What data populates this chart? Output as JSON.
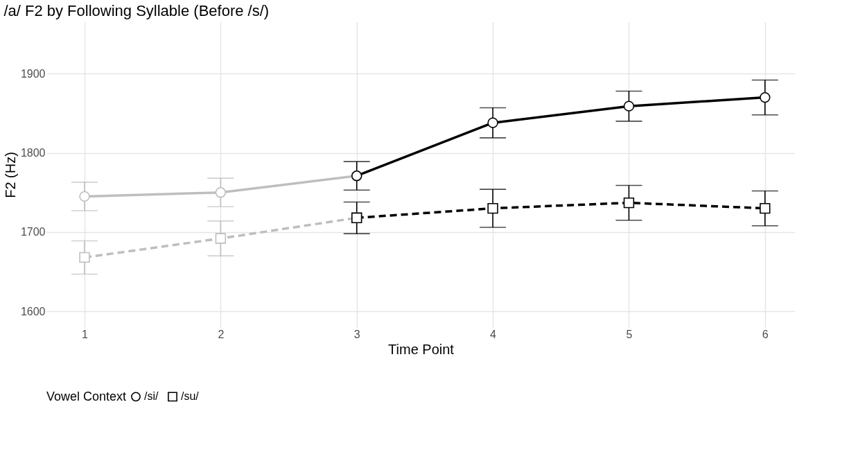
{
  "chart_data": {
    "type": "line",
    "title": "/a/ F2 by Following Syllable (Before /s/)",
    "xlabel": "Time Point",
    "ylabel": "F2 (Hz)",
    "legend_title": "Vowel Context",
    "series": [
      {
        "color": "#bebebe",
        "marker": "circle",
        "line_style": "solid",
        "x": [
          1,
          2,
          3
        ],
        "values": [
          1745,
          1750,
          1771
        ],
        "errors": [
          18,
          18,
          null
        ]
      },
      {
        "color": "#bebebe",
        "marker": "square",
        "line_style": "dashed",
        "x": [
          1,
          2,
          3
        ],
        "values": [
          1668,
          1692,
          1718
        ],
        "errors": [
          21,
          22,
          null
        ]
      },
      {
        "name": "/si/",
        "color": "#000000",
        "marker": "circle",
        "line_style": "solid",
        "x": [
          3,
          4,
          5,
          6
        ],
        "values": [
          1771,
          1838,
          1859,
          1870
        ],
        "errors": [
          18,
          19,
          19,
          22
        ]
      },
      {
        "name": "/su/",
        "color": "#000000",
        "marker": "square",
        "line_style": "dashed",
        "x": [
          3,
          4,
          5,
          6
        ],
        "values": [
          1718,
          1730,
          1737,
          1730
        ],
        "errors": [
          20,
          24,
          22,
          22
        ]
      }
    ],
    "xlim": [
      0.72,
      6.22
    ],
    "xticks": [
      1,
      2,
      3,
      4,
      5,
      6
    ],
    "ylim": [
      1580,
      1965
    ],
    "yticks": [
      1600,
      1700,
      1800,
      1900
    ],
    "grid": true,
    "legend": "bottom"
  }
}
